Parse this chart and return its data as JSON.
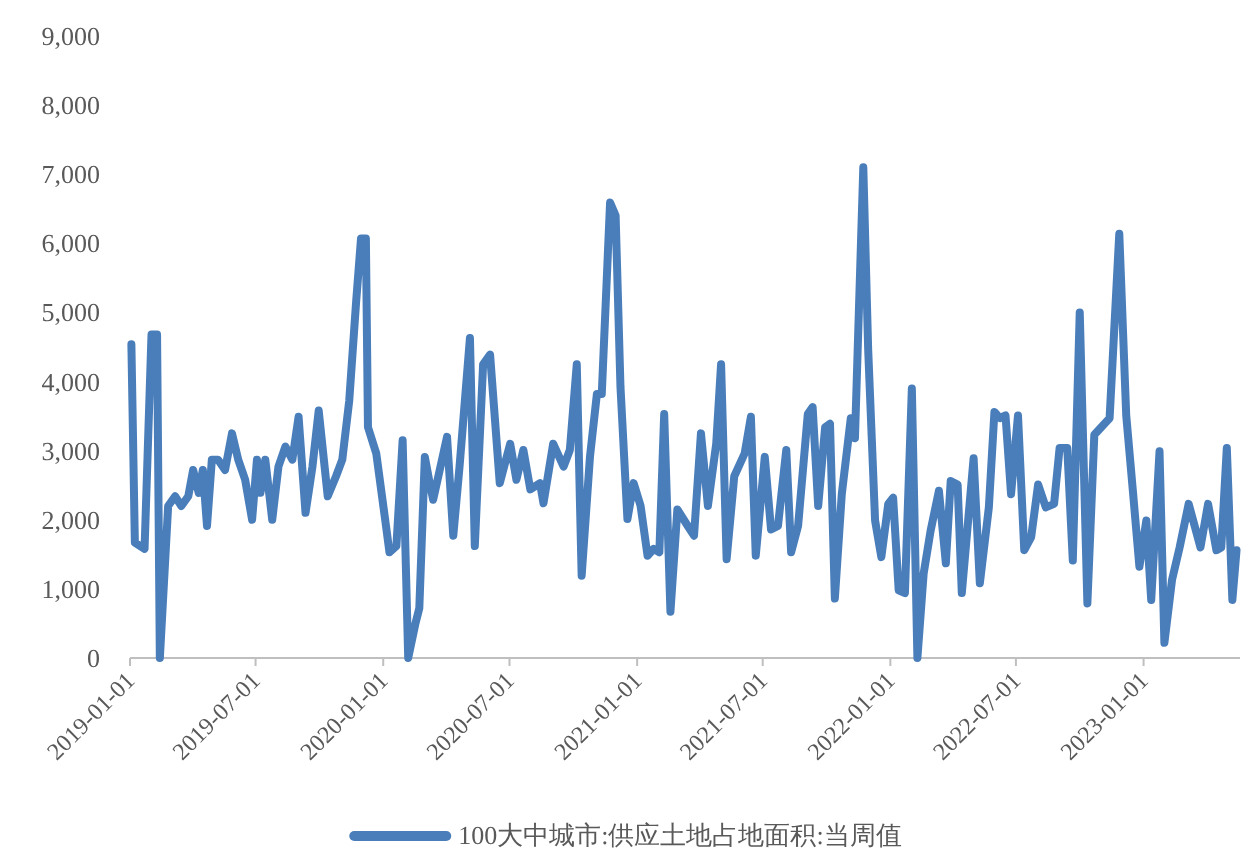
{
  "chart_data": {
    "type": "line",
    "legend": "bottom",
    "grid": false,
    "marker": "none",
    "line_style": "solid",
    "xlim": [
      "2019-01-01",
      "2023-05-20"
    ],
    "xticks": [
      {
        "value": "2019-01-01",
        "label": "2019-01-01"
      },
      {
        "value": "2019-07-01",
        "label": "2019-07-01"
      },
      {
        "value": "2020-01-01",
        "label": "2020-01-01"
      },
      {
        "value": "2020-07-01",
        "label": "2020-07-01"
      },
      {
        "value": "2021-01-01",
        "label": "2021-01-01"
      },
      {
        "value": "2021-07-01",
        "label": "2021-07-01"
      },
      {
        "value": "2022-01-01",
        "label": "2022-01-01"
      },
      {
        "value": "2022-07-01",
        "label": "2022-07-01"
      },
      {
        "value": "2023-01-01",
        "label": "2023-01-01"
      }
    ],
    "ylim": [
      0,
      9000
    ],
    "yticks": [
      0,
      {
        "value": 1000,
        "label": "1,000"
      },
      {
        "value": 2000,
        "label": "2,000"
      },
      {
        "value": 3000,
        "label": "3,000"
      },
      {
        "value": 4000,
        "label": "4,000"
      },
      {
        "value": 5000,
        "label": "5,000"
      },
      {
        "value": 6000,
        "label": "6,000"
      },
      {
        "value": 7000,
        "label": "7,000"
      },
      {
        "value": 8000,
        "label": "8,000"
      },
      {
        "value": 9000,
        "label": "9,000"
      }
    ],
    "x": [
      "2019-01-03",
      "2019-01-08",
      "2019-01-22",
      "2019-02-01",
      "2019-02-09",
      "2019-02-13",
      "2019-02-25",
      "2019-03-07",
      "2019-03-16",
      "2019-03-26",
      "2019-04-02",
      "2019-04-10",
      "2019-04-16",
      "2019-04-22",
      "2019-04-29",
      "2019-05-08",
      "2019-05-18",
      "2019-05-28",
      "2019-06-06",
      "2019-06-16",
      "2019-06-26",
      "2019-07-03",
      "2019-07-08",
      "2019-07-15",
      "2019-07-25",
      "2019-08-03",
      "2019-08-13",
      "2019-08-23",
      "2019-09-01",
      "2019-09-11",
      "2019-09-21",
      "2019-09-30",
      "2019-10-13",
      "2019-10-25",
      "2019-11-03",
      "2019-11-13",
      "2019-11-23",
      "2019-11-30",
      "2019-12-07",
      "2019-12-10",
      "2019-12-22",
      "2020-01-05",
      "2020-01-10",
      "2020-01-20",
      "2020-01-29",
      "2020-02-06",
      "2020-02-16",
      "2020-02-22",
      "2020-03-01",
      "2020-03-08",
      "2020-03-13",
      "2020-04-02",
      "2020-04-11",
      "2020-04-20",
      "2020-05-05",
      "2020-05-12",
      "2020-05-24",
      "2020-06-03",
      "2020-06-17",
      "2020-07-02",
      "2020-07-11",
      "2020-07-21",
      "2020-07-31",
      "2020-08-14",
      "2020-08-19",
      "2020-09-02",
      "2020-09-17",
      "2020-09-26",
      "2020-10-06",
      "2020-10-13",
      "2020-10-25",
      "2020-11-04",
      "2020-11-11",
      "2020-11-23",
      "2020-12-01",
      "2020-12-08",
      "2020-12-18",
      "2020-12-27",
      "2021-01-06",
      "2021-01-16",
      "2021-01-25",
      "2021-02-02",
      "2021-02-09",
      "2021-02-18",
      "2021-02-28",
      "2021-03-15",
      "2021-03-24",
      "2021-04-03",
      "2021-04-13",
      "2021-04-25",
      "2021-05-02",
      "2021-05-10",
      "2021-05-21",
      "2021-06-05",
      "2021-06-14",
      "2021-06-21",
      "2021-07-04",
      "2021-07-13",
      "2021-07-23",
      "2021-08-04",
      "2021-08-11",
      "2021-08-21",
      "2021-09-04",
      "2021-09-11",
      "2021-09-19",
      "2021-09-29",
      "2021-10-06",
      "2021-10-13",
      "2021-10-23",
      "2021-11-05",
      "2021-11-11",
      "2021-11-23",
      "2021-11-30",
      "2021-12-10",
      "2021-12-19",
      "2021-12-29",
      "2022-01-05",
      "2022-01-13",
      "2022-01-22",
      "2022-02-01",
      "2022-02-09",
      "2022-02-18",
      "2022-02-28",
      "2022-03-12",
      "2022-03-22",
      "2022-03-29",
      "2022-04-08",
      "2022-04-14",
      "2022-05-01",
      "2022-05-10",
      "2022-05-23",
      "2022-05-31",
      "2022-06-08",
      "2022-06-16",
      "2022-06-24",
      "2022-07-04",
      "2022-07-13",
      "2022-07-23",
      "2022-08-02",
      "2022-08-13",
      "2022-08-25",
      "2022-09-02",
      "2022-09-13",
      "2022-09-21",
      "2022-10-01",
      "2022-10-12",
      "2022-10-22",
      "2022-11-13",
      "2022-11-27",
      "2022-12-07",
      "2022-12-17",
      "2022-12-26",
      "2023-01-05",
      "2023-01-12",
      "2023-01-24",
      "2023-01-31",
      "2023-02-11",
      "2023-02-22",
      "2023-03-07",
      "2023-03-24",
      "2023-04-04",
      "2023-04-16",
      "2023-04-23",
      "2023-05-01",
      "2023-05-09",
      "2023-05-15"
    ],
    "series": [
      {
        "name": "100大中城市:供应土地占地面积:当周值",
        "color": "#4a7ebb",
        "values": [
          4540,
          1670,
          1580,
          4680,
          4680,
          0,
          2200,
          2340,
          2200,
          2340,
          2720,
          2390,
          2720,
          1910,
          2870,
          2870,
          2720,
          3250,
          2870,
          2580,
          2000,
          2870,
          2390,
          2870,
          2000,
          2770,
          3060,
          2870,
          3490,
          2100,
          2770,
          3580,
          2340,
          2630,
          2870,
          3720,
          5160,
          6070,
          6070,
          3340,
          2960,
          1910,
          1530,
          1620,
          3150,
          0,
          480,
          720,
          2910,
          2530,
          2290,
          3200,
          1770,
          2770,
          4630,
          1620,
          4250,
          4390,
          2530,
          3100,
          2580,
          3010,
          2440,
          2530,
          2240,
          3100,
          2770,
          3010,
          4250,
          1190,
          2910,
          3820,
          3820,
          6590,
          6400,
          3920,
          2010,
          2530,
          2200,
          1480,
          1580,
          1530,
          3530,
          670,
          2150,
          1910,
          1770,
          3250,
          2200,
          3100,
          4250,
          1430,
          2630,
          2960,
          3490,
          1480,
          2910,
          1860,
          1910,
          3010,
          1530,
          1910,
          3530,
          3630,
          2200,
          3340,
          3390,
          860,
          2370,
          3470,
          3180,
          7100,
          4470,
          1990,
          1460,
          2230,
          2320,
          980,
          940,
          3900,
          0,
          1220,
          1840,
          2420,
          1370,
          2560,
          2510,
          940,
          2890,
          1080,
          2180,
          3560,
          3470,
          3510,
          2370,
          3510,
          1560,
          1750,
          2510,
          2180,
          2230,
          3040,
          3040,
          1410,
          5000,
          790,
          3230,
          3470,
          6140,
          3510,
          2370,
          1320,
          1990,
          840,
          2990,
          220,
          1130,
          1600,
          2230,
          1600,
          2230,
          1560,
          1600,
          3040,
          840,
          1560
        ]
      }
    ]
  }
}
